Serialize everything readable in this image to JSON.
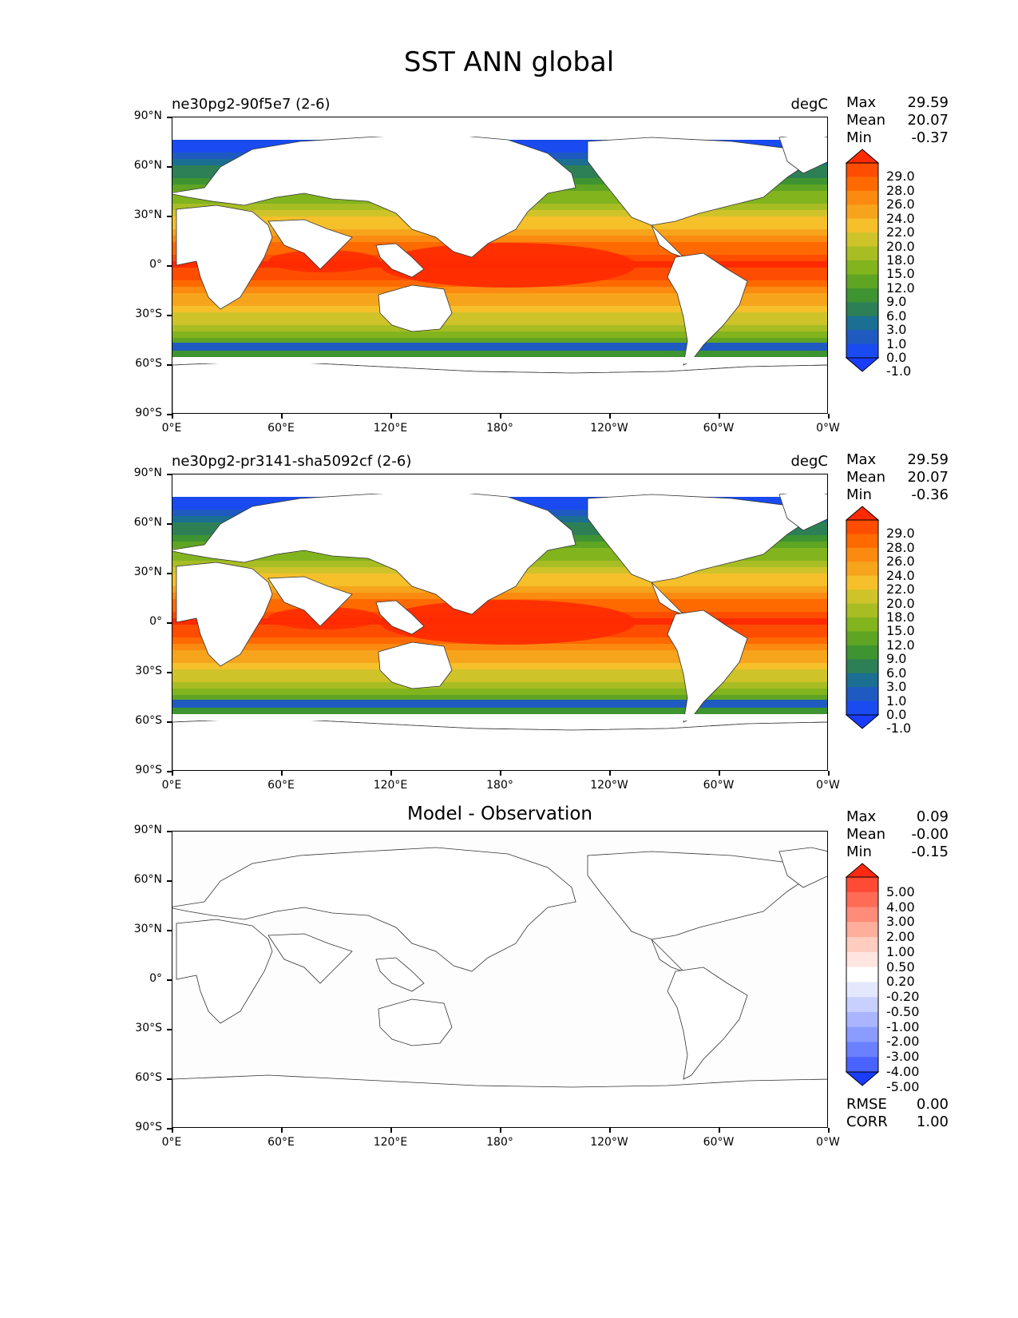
{
  "figure_title": "SST ANN global",
  "y_ticks": [
    "90°N",
    "60°N",
    "30°N",
    "0°",
    "30°S",
    "60°S",
    "90°S"
  ],
  "x_ticks": [
    "0°E",
    "60°E",
    "120°E",
    "180°",
    "120°W",
    "60°W",
    "0°W"
  ],
  "panels": [
    {
      "id": "test",
      "left_title": "ne30pg2-90f5e7 (2-6)",
      "center_title": "",
      "units": "degC",
      "stats": [
        {
          "key": "Max",
          "value": "29.59"
        },
        {
          "key": "Mean",
          "value": "20.07"
        },
        {
          "key": "Min",
          "value": "-0.37"
        }
      ],
      "field": "sst",
      "colorbar": {
        "labels": [
          "29.0",
          "28.0",
          "26.0",
          "24.0",
          "22.0",
          "20.0",
          "18.0",
          "15.0",
          "12.0",
          "9.0",
          "6.0",
          "3.0",
          "1.0",
          "0.0",
          "-1.0"
        ],
        "colors": [
          "#ff2a00",
          "#ff4d00",
          "#ff6a00",
          "#fb8a10",
          "#f7a41d",
          "#f5c02a",
          "#cfc32a",
          "#a8bd24",
          "#82b41e",
          "#5fa523",
          "#3e9430",
          "#2d8055",
          "#1a6f92",
          "#1f5ac0",
          "#1a4bf0",
          "#1a3cff"
        ]
      }
    },
    {
      "id": "ref",
      "left_title": "ne30pg2-pr3141-sha5092cf (2-6)",
      "center_title": "",
      "units": "degC",
      "stats": [
        {
          "key": "Max",
          "value": "29.59"
        },
        {
          "key": "Mean",
          "value": "20.07"
        },
        {
          "key": "Min",
          "value": "-0.36"
        }
      ],
      "field": "sst",
      "colorbar": {
        "labels": [
          "29.0",
          "28.0",
          "26.0",
          "24.0",
          "22.0",
          "20.0",
          "18.0",
          "15.0",
          "12.0",
          "9.0",
          "6.0",
          "3.0",
          "1.0",
          "0.0",
          "-1.0"
        ],
        "colors": [
          "#ff2a00",
          "#ff4d00",
          "#ff6a00",
          "#fb8a10",
          "#f7a41d",
          "#f5c02a",
          "#cfc32a",
          "#a8bd24",
          "#82b41e",
          "#5fa523",
          "#3e9430",
          "#2d8055",
          "#1a6f92",
          "#1f5ac0",
          "#1a4bf0",
          "#1a3cff"
        ]
      }
    },
    {
      "id": "diff",
      "left_title": "",
      "center_title": "Model - Observation",
      "units": "",
      "stats": [
        {
          "key": "Max",
          "value": "0.09"
        },
        {
          "key": "Mean",
          "value": "-0.00"
        },
        {
          "key": "Min",
          "value": "-0.15"
        }
      ],
      "field": "diff",
      "extra_stats": [
        {
          "key": "RMSE",
          "value": "0.00"
        },
        {
          "key": "CORR",
          "value": "1.00"
        }
      ],
      "colorbar": {
        "labels": [
          "5.00",
          "4.00",
          "3.00",
          "2.00",
          "1.00",
          "0.50",
          "0.20",
          "-0.20",
          "-0.50",
          "-1.00",
          "-2.00",
          "-3.00",
          "-4.00",
          "-5.00"
        ],
        "colors": [
          "#ff2a10",
          "#ff4a35",
          "#ff6b55",
          "#ff8c78",
          "#ffae9c",
          "#ffccc0",
          "#ffe6e0",
          "#ffffff",
          "#e4e8ff",
          "#c8d0ff",
          "#a9b6ff",
          "#8a9cff",
          "#6a80ff",
          "#4a62ff",
          "#1a3cff"
        ]
      }
    }
  ]
}
